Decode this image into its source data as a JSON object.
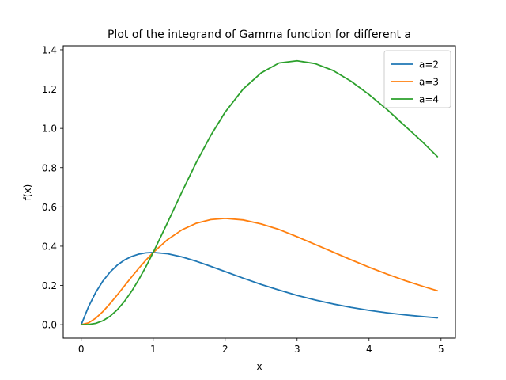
{
  "chart_data": {
    "type": "line",
    "title": "Plot of the integrand of Gamma function for different a",
    "xlabel": "x",
    "ylabel": "f(x)",
    "xlim": [
      -0.25,
      5.2
    ],
    "ylim": [
      -0.068,
      1.42
    ],
    "xticks": [
      0,
      1,
      2,
      3,
      4,
      5
    ],
    "yticks": [
      0.0,
      0.2,
      0.4,
      0.6,
      0.8,
      1.0,
      1.2,
      1.4
    ],
    "xtick_labels": [
      "0",
      "1",
      "2",
      "3",
      "4",
      "5"
    ],
    "ytick_labels": [
      "0.0",
      "0.2",
      "0.4",
      "0.6",
      "0.8",
      "1.0",
      "1.2",
      "1.4"
    ],
    "grid": false,
    "legend_position": "top-right",
    "series": [
      {
        "name": "a=2",
        "color": "#1f77b4",
        "x": [
          0,
          0.1,
          0.2,
          0.3,
          0.4,
          0.5,
          0.6,
          0.7,
          0.8,
          0.9,
          1.0,
          1.2,
          1.4,
          1.6,
          1.8,
          2.0,
          2.25,
          2.5,
          2.75,
          3.0,
          3.25,
          3.5,
          3.75,
          4.0,
          4.25,
          4.5,
          4.75,
          4.95
        ],
        "y": [
          0,
          0.0905,
          0.1637,
          0.2222,
          0.2681,
          0.3033,
          0.3293,
          0.3476,
          0.3595,
          0.3659,
          0.3679,
          0.3614,
          0.3452,
          0.323,
          0.2975,
          0.2707,
          0.2371,
          0.2052,
          0.1763,
          0.1494,
          0.1259,
          0.1057,
          0.0882,
          0.0733,
          0.0607,
          0.05,
          0.0411,
          0.0349
        ]
      },
      {
        "name": "a=3",
        "color": "#ff7f0e",
        "x": [
          0,
          0.1,
          0.2,
          0.3,
          0.4,
          0.5,
          0.6,
          0.7,
          0.8,
          0.9,
          1.0,
          1.2,
          1.4,
          1.6,
          1.8,
          2.0,
          2.25,
          2.5,
          2.75,
          3.0,
          3.25,
          3.5,
          3.75,
          4.0,
          4.25,
          4.5,
          4.75,
          4.95
        ],
        "y": [
          0,
          0.009,
          0.0327,
          0.0667,
          0.1073,
          0.1516,
          0.1976,
          0.2433,
          0.2876,
          0.3293,
          0.3679,
          0.4337,
          0.4832,
          0.5169,
          0.5355,
          0.5413,
          0.5336,
          0.513,
          0.4848,
          0.4481,
          0.4092,
          0.37,
          0.3307,
          0.293,
          0.2579,
          0.2249,
          0.1954,
          0.1729
        ]
      },
      {
        "name": "a=4",
        "color": "#2ca02c",
        "x": [
          0,
          0.1,
          0.2,
          0.3,
          0.4,
          0.5,
          0.6,
          0.7,
          0.8,
          0.9,
          1.0,
          1.2,
          1.4,
          1.6,
          1.8,
          2.0,
          2.25,
          2.5,
          2.75,
          3.0,
          3.25,
          3.5,
          3.75,
          4.0,
          4.25,
          4.5,
          4.75,
          4.95
        ],
        "y": [
          0,
          0.0009,
          0.0065,
          0.02,
          0.0429,
          0.0758,
          0.1185,
          0.1703,
          0.2301,
          0.2964,
          0.3679,
          0.5204,
          0.6765,
          0.827,
          0.9639,
          1.0827,
          1.2006,
          1.2826,
          1.3332,
          1.3443,
          1.33,
          1.295,
          1.2401,
          1.1722,
          1.0962,
          1.0122,
          0.9282,
          0.8559
        ]
      }
    ]
  }
}
